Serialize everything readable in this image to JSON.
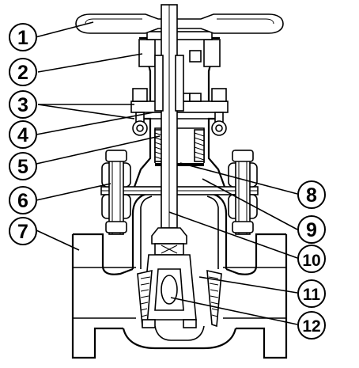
{
  "callouts": [
    {
      "number": "1"
    },
    {
      "number": "2"
    },
    {
      "number": "3"
    },
    {
      "number": "4"
    },
    {
      "number": "5"
    },
    {
      "number": "6"
    },
    {
      "number": "7"
    },
    {
      "number": "8"
    },
    {
      "number": "9"
    },
    {
      "number": "10"
    },
    {
      "number": "11"
    },
    {
      "number": "12"
    }
  ]
}
